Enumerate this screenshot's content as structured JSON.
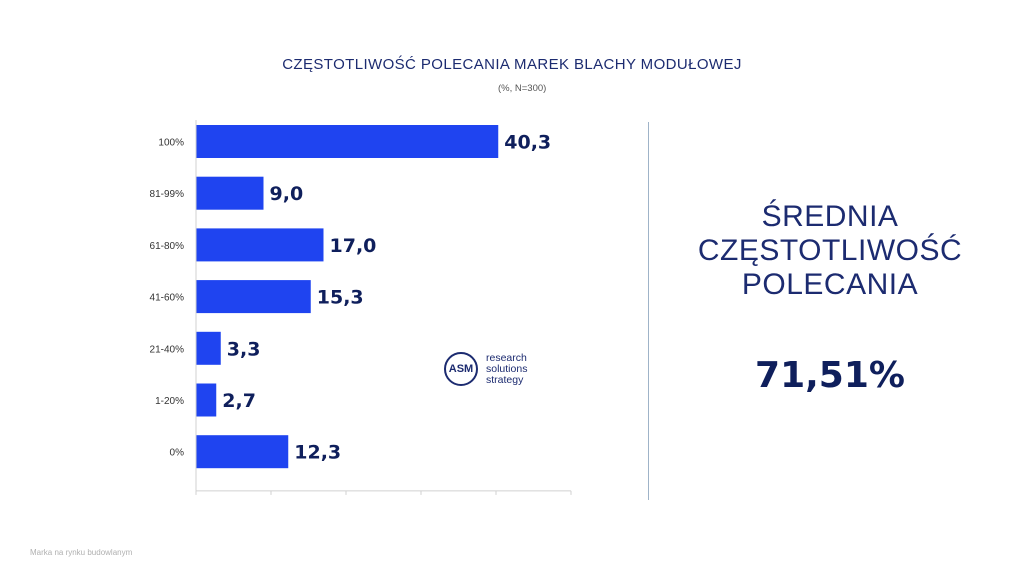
{
  "header": {
    "title": "CZĘSTOTLIWOŚĆ POLECANIA MAREK BLACHY MODUŁOWEJ",
    "subtitle": "(%, N=300)"
  },
  "chart_data": {
    "type": "bar",
    "orientation": "horizontal",
    "title": "CZĘSTOTLIWOŚĆ POLECANIA MAREK BLACHY MODUŁOWEJ",
    "subtitle": "(%, N=300)",
    "categories": [
      "100%",
      "81-99%",
      "61-80%",
      "41-60%",
      "21-40%",
      "1-20%",
      "0%"
    ],
    "values": [
      40.3,
      9.0,
      17.0,
      15.3,
      3.3,
      2.7,
      12.3
    ],
    "value_labels": [
      "40,3",
      "9,0",
      "17,0",
      "15,3",
      "3,3",
      "2,7",
      "12,3"
    ],
    "xlim": [
      0,
      50
    ],
    "grid": false,
    "bar_color": "#1f44f0"
  },
  "summary": {
    "title_lines": [
      "ŚREDNIA",
      "CZĘSTOTLIWOŚĆ",
      "POLECANIA"
    ],
    "value": "71,51%"
  },
  "logo": {
    "initials": "ASM",
    "lines": [
      "research",
      "solutions",
      "strategy"
    ]
  },
  "footer": {
    "text": "Marka na rynku budowlanym"
  },
  "colors": {
    "bar": "#1f44f0",
    "text_dark": "#0f1f5c",
    "title": "#1c2b70",
    "divider": "#9fb3c8"
  }
}
